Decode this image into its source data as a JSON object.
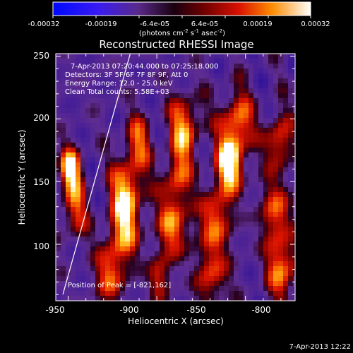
{
  "colorbar": {
    "ticks": [
      "-0.00032",
      "-0.00019",
      "-6.4e-05",
      "6.4e-05",
      "0.00019",
      "0.00032"
    ],
    "units_main": "(photons cm",
    "units_exp1": "-2",
    "units_mid": " s",
    "units_exp2": "-1",
    "units_tail": " asec",
    "units_exp3": "-2",
    "units_close": ")"
  },
  "title": "Reconstructed RHESSI Image",
  "annotations": {
    "time_range": "7-Apr-2013 07:20:44.000 to 07:25:18.000",
    "detectors": "Detectors: 3F 5F 6F 7F 8F 9F, Att 0",
    "energy": "Energy Range: 12.0 - 25.0 keV",
    "clean": "Clean     Total counts: 5.58E+03",
    "peak": "Position of Peak = [-821,162]"
  },
  "footer_timestamp": "7-Apr-2013 12:22",
  "chart_data": {
    "type": "heatmap",
    "title": "Reconstructed RHESSI Image",
    "xlabel": "Heliocentric X (arcsec)",
    "ylabel": "Heliocentric Y (arcsec)",
    "xlim": [
      -957,
      -822
    ],
    "ylim": [
      55,
      252
    ],
    "x_ticks": [
      -950,
      -900,
      -850,
      -800
    ],
    "y_ticks": [
      100,
      150,
      200,
      250
    ],
    "colorbar_range": [
      -0.00032,
      0.00032
    ],
    "peak_position": [
      -821,
      162
    ],
    "limb_line": [
      [
        -953,
        60
      ],
      [
        -915,
        252
      ]
    ],
    "grid": false
  }
}
